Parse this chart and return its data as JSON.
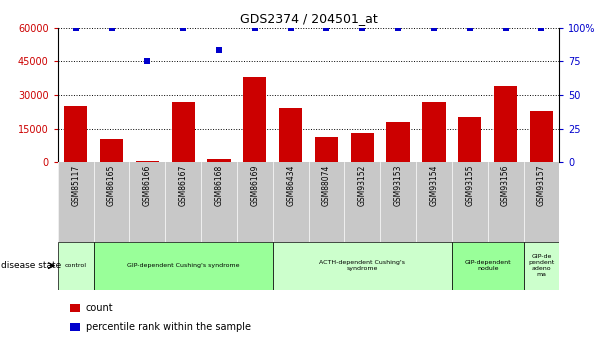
{
  "title": "GDS2374 / 204501_at",
  "samples": [
    "GSM85117",
    "GSM86165",
    "GSM86166",
    "GSM86167",
    "GSM86168",
    "GSM86169",
    "GSM86434",
    "GSM88074",
    "GSM93152",
    "GSM93153",
    "GSM93154",
    "GSM93155",
    "GSM93156",
    "GSM93157"
  ],
  "counts": [
    25000,
    10500,
    500,
    27000,
    1500,
    38000,
    24000,
    11000,
    13000,
    18000,
    27000,
    20000,
    34000,
    23000
  ],
  "percentile_ranks": [
    100,
    100,
    75,
    100,
    83,
    100,
    100,
    100,
    100,
    100,
    100,
    100,
    100,
    100
  ],
  "ylim_left": [
    0,
    60000
  ],
  "ylim_right": [
    0,
    100
  ],
  "yticks_left": [
    0,
    15000,
    30000,
    45000,
    60000
  ],
  "yticks_right": [
    0,
    25,
    50,
    75,
    100
  ],
  "bar_color": "#cc0000",
  "scatter_color": "#0000cc",
  "grid_color": "#000000",
  "disease_groups": [
    {
      "label": "control",
      "start": 0,
      "end": 1,
      "color": "#ccffcc"
    },
    {
      "label": "GIP-dependent Cushing's syndrome",
      "start": 1,
      "end": 6,
      "color": "#99ff99"
    },
    {
      "label": "ACTH-dependent Cushing's\nsyndrome",
      "start": 6,
      "end": 11,
      "color": "#ccffcc"
    },
    {
      "label": "GIP-dependent\nnodule",
      "start": 11,
      "end": 13,
      "color": "#99ff99"
    },
    {
      "label": "GIP-de\npendent\nadeno\nma",
      "start": 13,
      "end": 14,
      "color": "#ccffcc"
    }
  ],
  "tick_label_color_left": "#cc0000",
  "tick_label_color_right": "#0000cc",
  "legend_items": [
    {
      "label": "count",
      "color": "#cc0000"
    },
    {
      "label": "percentile rank within the sample",
      "color": "#0000cc"
    }
  ],
  "background_color": "#ffffff"
}
